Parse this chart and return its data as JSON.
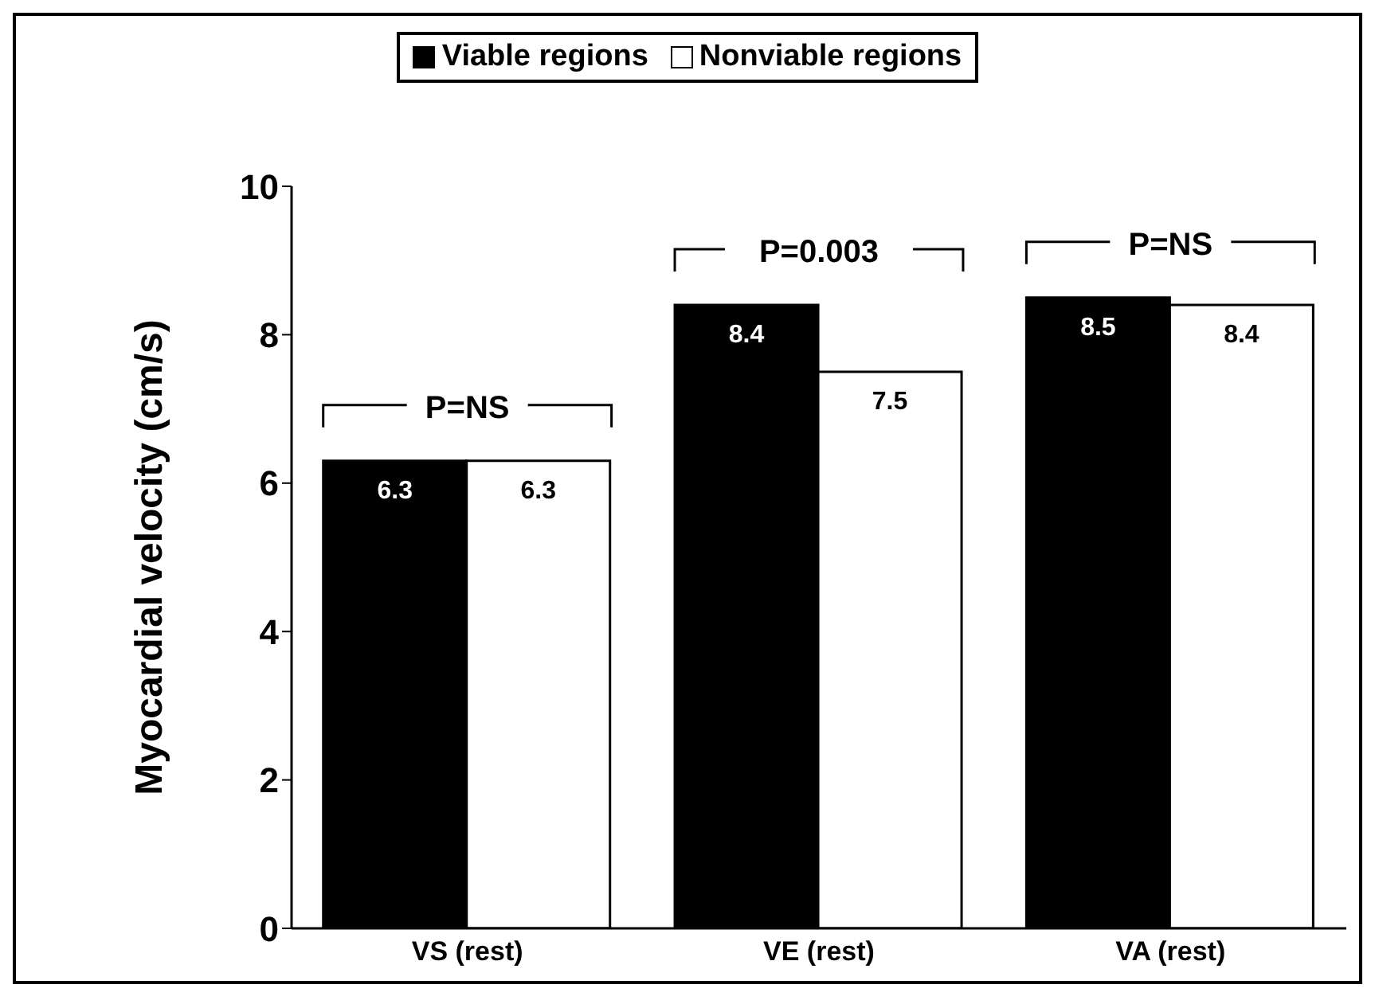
{
  "chart_data": {
    "type": "bar",
    "ylabel": "Myocardial velocity (cm/s)",
    "categories": [
      "VS (rest)",
      "VE (rest)",
      "VA (rest)"
    ],
    "series": [
      {
        "name": "Viable regions",
        "color": "#000000",
        "values": [
          6.3,
          8.4,
          8.5
        ]
      },
      {
        "name": "Nonviable regions",
        "color": "#ffffff",
        "values": [
          6.3,
          7.5,
          8.4
        ]
      }
    ],
    "ylim": [
      0,
      10
    ],
    "yticks": [
      0,
      2,
      4,
      6,
      8,
      10
    ],
    "data_labels": true,
    "legend": "top",
    "annotations": [
      "P=NS",
      "P=0.003",
      "P=NS"
    ]
  }
}
